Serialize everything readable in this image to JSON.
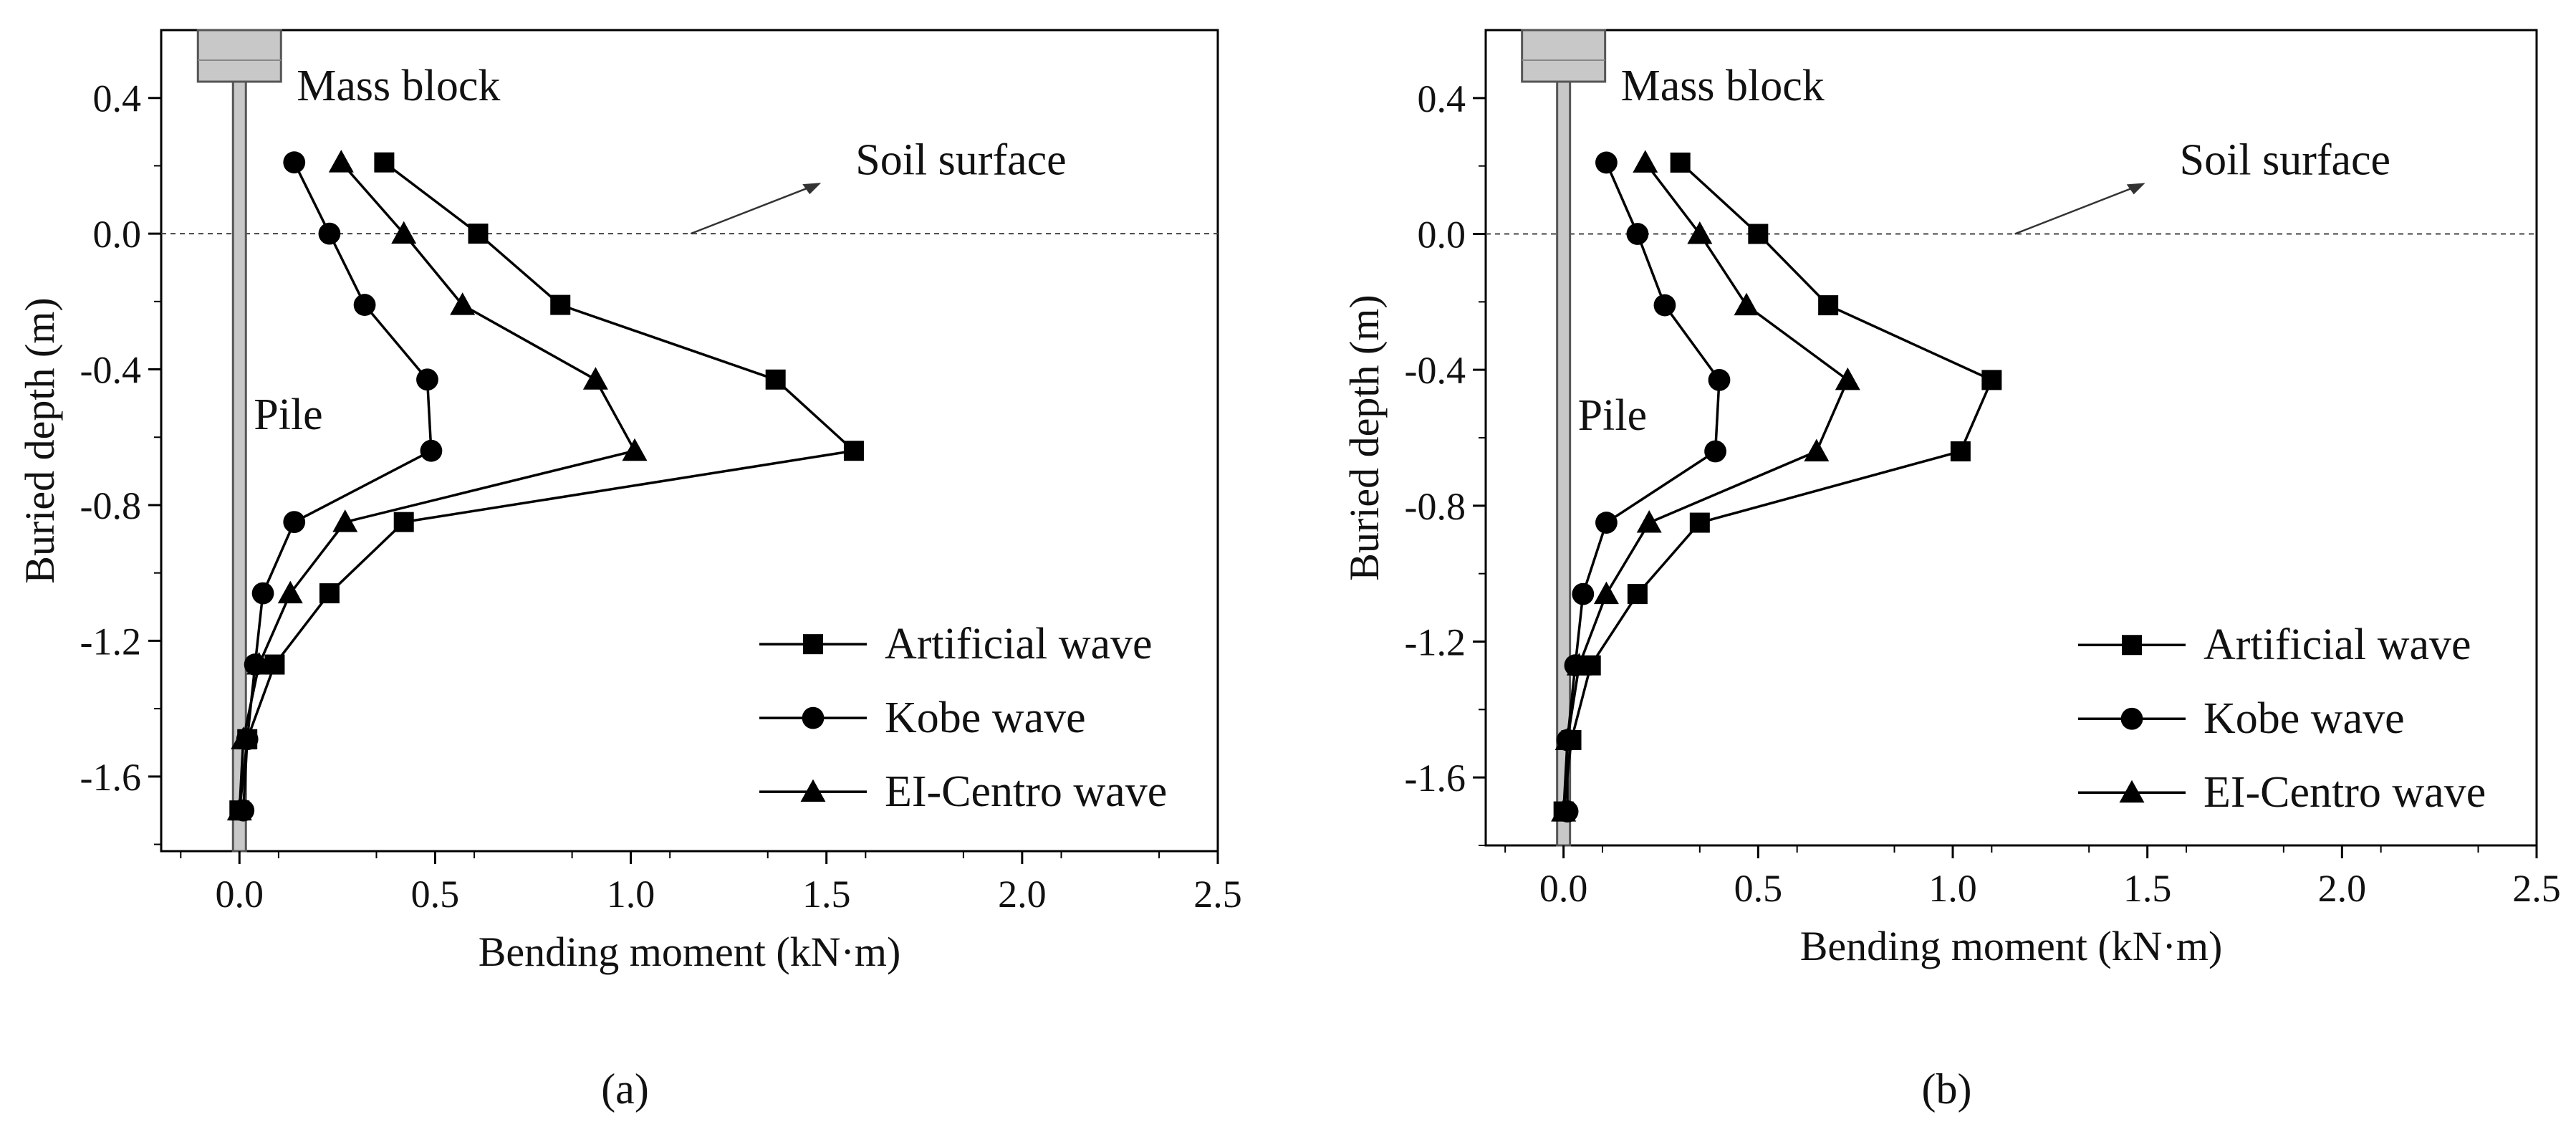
{
  "chart_data": [
    {
      "type": "line",
      "panel_label": "(a)",
      "xlabel": "Bending moment (kN·m)",
      "ylabel": "Buried depth (m)",
      "xlim": [
        -0.2,
        2.5
      ],
      "ylim": [
        -1.82,
        0.6
      ],
      "xticks": [
        0.0,
        0.5,
        1.0,
        1.5,
        2.0,
        2.5
      ],
      "xtick_labels": [
        "0.0",
        "0.5",
        "1.0",
        "1.5",
        "2.0",
        "2.5"
      ],
      "yticks": [
        0.4,
        0.0,
        -0.4,
        -0.8,
        -1.2,
        -1.6
      ],
      "ytick_labels": [
        "0.4",
        "0.0",
        "-0.4",
        "-0.8",
        "-1.2",
        "-1.6"
      ],
      "annotations": {
        "mass_block": "Mass block",
        "pile": "Pile",
        "soil_surface": "Soil surface"
      },
      "legend_position": "bottom-right",
      "series": [
        {
          "name": "Artificial wave",
          "marker": "square",
          "points": [
            [
              0.37,
              0.21
            ],
            [
              0.61,
              0.0
            ],
            [
              0.82,
              -0.21
            ],
            [
              1.37,
              -0.43
            ],
            [
              1.57,
              -0.64
            ],
            [
              0.42,
              -0.85
            ],
            [
              0.23,
              -1.06
            ],
            [
              0.09,
              -1.27
            ],
            [
              0.02,
              -1.49
            ],
            [
              0.0,
              -1.7
            ]
          ]
        },
        {
          "name": "Kobe wave",
          "marker": "circle",
          "points": [
            [
              0.14,
              0.21
            ],
            [
              0.23,
              0.0
            ],
            [
              0.32,
              -0.21
            ],
            [
              0.48,
              -0.43
            ],
            [
              0.49,
              -0.64
            ],
            [
              0.14,
              -0.85
            ],
            [
              0.06,
              -1.06
            ],
            [
              0.04,
              -1.27
            ],
            [
              0.02,
              -1.49
            ],
            [
              0.01,
              -1.7
            ]
          ]
        },
        {
          "name": "EI-Centro wave",
          "marker": "triangle",
          "points": [
            [
              0.26,
              0.21
            ],
            [
              0.42,
              0.0
            ],
            [
              0.57,
              -0.21
            ],
            [
              0.91,
              -0.43
            ],
            [
              1.01,
              -0.64
            ],
            [
              0.27,
              -0.85
            ],
            [
              0.13,
              -1.06
            ],
            [
              0.05,
              -1.27
            ],
            [
              0.01,
              -1.49
            ],
            [
              0.0,
              -1.7
            ]
          ]
        }
      ]
    },
    {
      "type": "line",
      "panel_label": "(b)",
      "xlabel": "Bending moment (kN·m)",
      "ylabel": "Buried depth (m)",
      "xlim": [
        -0.2,
        2.5
      ],
      "ylim": [
        -1.8,
        0.6
      ],
      "xticks": [
        0.0,
        0.5,
        1.0,
        1.5,
        2.0,
        2.5
      ],
      "xtick_labels": [
        "0.0",
        "0.5",
        "1.0",
        "1.5",
        "2.0",
        "2.5"
      ],
      "yticks": [
        0.4,
        0.0,
        -0.4,
        -0.8,
        -1.2,
        -1.6
      ],
      "ytick_labels": [
        "0.4",
        "0.0",
        "-0.4",
        "-0.8",
        "-1.2",
        "-1.6"
      ],
      "annotations": {
        "mass_block": "Mass block",
        "pile": "Pile",
        "soil_surface": "Soil surface"
      },
      "legend_position": "bottom-right",
      "series": [
        {
          "name": "Artificial wave",
          "marker": "square",
          "points": [
            [
              0.3,
              0.21
            ],
            [
              0.5,
              0.0
            ],
            [
              0.68,
              -0.21
            ],
            [
              1.1,
              -0.43
            ],
            [
              1.02,
              -0.64
            ],
            [
              0.35,
              -0.85
            ],
            [
              0.19,
              -1.06
            ],
            [
              0.07,
              -1.27
            ],
            [
              0.02,
              -1.49
            ],
            [
              0.0,
              -1.7
            ]
          ]
        },
        {
          "name": "Kobe wave",
          "marker": "circle",
          "points": [
            [
              0.11,
              0.21
            ],
            [
              0.19,
              0.0
            ],
            [
              0.26,
              -0.21
            ],
            [
              0.4,
              -0.43
            ],
            [
              0.39,
              -0.64
            ],
            [
              0.11,
              -0.85
            ],
            [
              0.05,
              -1.06
            ],
            [
              0.03,
              -1.27
            ],
            [
              0.01,
              -1.49
            ],
            [
              0.01,
              -1.7
            ]
          ]
        },
        {
          "name": "EI-Centro wave",
          "marker": "triangle",
          "points": [
            [
              0.21,
              0.21
            ],
            [
              0.35,
              0.0
            ],
            [
              0.47,
              -0.21
            ],
            [
              0.73,
              -0.43
            ],
            [
              0.65,
              -0.64
            ],
            [
              0.22,
              -0.85
            ],
            [
              0.11,
              -1.06
            ],
            [
              0.04,
              -1.27
            ],
            [
              0.01,
              -1.49
            ],
            [
              0.0,
              -1.7
            ]
          ]
        }
      ]
    }
  ]
}
